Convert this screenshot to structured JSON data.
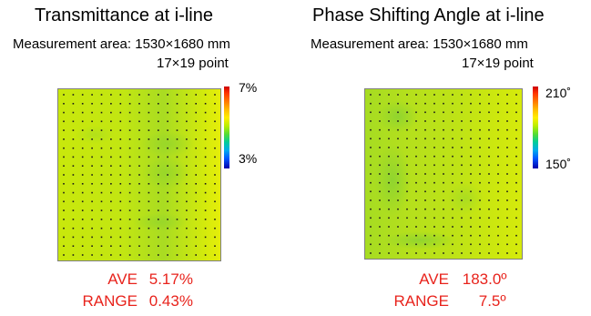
{
  "panels": [
    {
      "title": "Transmittance at i-line",
      "measurement_area": "Measurement area: 1530×1680 mm",
      "points": "17×19 point",
      "colorbar": {
        "max_label": "7%",
        "min_label": "3%"
      },
      "stats": {
        "ave_label": "AVE",
        "ave_value": "5.17%",
        "range_label": "RANGE",
        "range_value": "0.43%"
      }
    },
    {
      "title": "Phase Shifting Angle at i-line",
      "measurement_area": "Measurement area: 1530×1680 mm",
      "points": "17×19 point",
      "colorbar": {
        "max_label": "210˚",
        "min_label": "150˚"
      },
      "stats": {
        "ave_label": "AVE",
        "ave_value": "183.0º",
        "range_label": "RANGE",
        "range_value": "7.5º"
      }
    }
  ],
  "chart_data": [
    {
      "type": "heatmap",
      "title": "Transmittance at i-line",
      "grid": {
        "columns": 17,
        "rows": 19
      },
      "colorbar_range": [
        "3%",
        "7%"
      ],
      "colors": {
        "base": "#c8e80a",
        "low": "#a8dc1e",
        "high": "#e0ec0a"
      },
      "summary": {
        "AVE": "5.17%",
        "RANGE": "0.43%"
      }
    },
    {
      "type": "heatmap",
      "title": "Phase Shifting Angle at i-line",
      "grid": {
        "columns": 17,
        "rows": 19
      },
      "colorbar_range": [
        "150˚",
        "210˚"
      ],
      "colors": {
        "base": "#b4e01e",
        "low": "#96d82a",
        "high": "#d2e810"
      },
      "summary": {
        "AVE": "183.0º",
        "RANGE": "7.5º"
      }
    }
  ]
}
